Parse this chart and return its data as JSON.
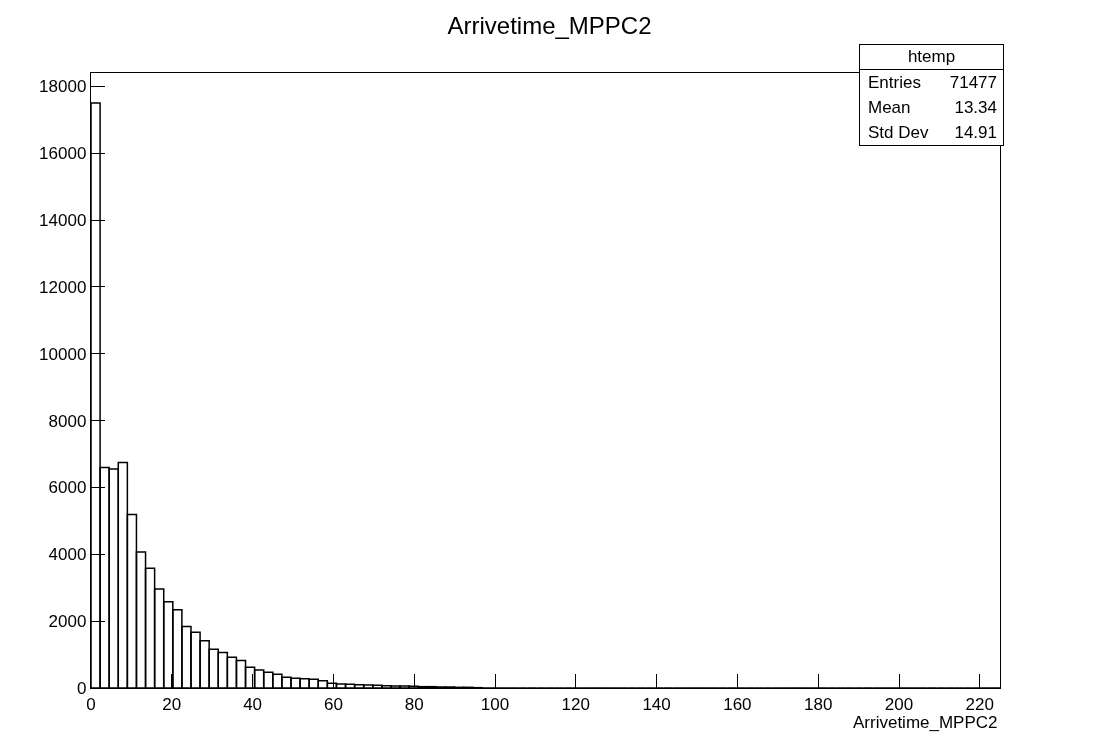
{
  "chart_data": {
    "type": "histogram",
    "title": "Arrivetime_MPPC2",
    "xlabel": "Arrivetime_MPPC2",
    "bins": [
      0,
      2.25,
      4.5,
      6.75,
      9,
      11.25,
      13.5,
      15.75,
      18,
      20.25,
      22.5,
      24.75,
      27,
      29.25,
      31.5,
      33.75,
      36,
      38.25,
      40.5,
      42.75,
      45,
      47.25,
      49.5,
      51.75,
      54,
      56.25,
      58.5,
      60.75,
      63,
      65.25,
      67.5,
      69.75,
      72,
      74.25,
      76.5,
      78.75,
      81,
      83.25,
      85.5,
      87.75,
      90,
      92.25,
      94.5,
      96.75,
      99,
      101.25,
      103.5,
      105.75,
      108,
      110.25,
      112.5,
      114.75,
      117,
      119.25,
      121.5,
      123.75,
      126,
      128.25,
      130.5,
      132.75,
      135,
      137.25,
      139.5,
      141.75,
      144,
      146.25,
      148.5,
      150.75,
      153,
      155.25,
      157.5,
      159.75,
      162,
      164.25,
      166.5,
      168.75,
      171,
      173.25,
      175.5,
      177.75,
      180,
      182.25,
      184.5,
      186.75,
      189,
      191.25,
      193.5,
      195.75,
      198,
      200.25,
      202.5,
      204.75,
      207,
      209.25,
      211.5,
      213.75,
      216,
      218.25,
      220.5,
      222.75,
      225
    ],
    "values": [
      17500,
      6600,
      6550,
      6750,
      5190,
      4070,
      3580,
      2960,
      2580,
      2340,
      1840,
      1670,
      1410,
      1160,
      1060,
      920,
      820,
      620,
      540,
      470,
      410,
      320,
      290,
      280,
      260,
      220,
      140,
      120,
      110,
      100,
      90,
      80,
      70,
      60,
      60,
      50,
      40,
      40,
      30,
      30,
      20,
      20,
      10,
      0,
      0,
      0,
      0,
      0,
      0,
      0,
      0,
      0,
      0,
      0,
      0,
      0,
      0,
      0,
      0,
      0,
      0,
      0,
      0,
      0,
      0,
      0,
      0,
      0,
      0,
      0,
      0,
      0,
      0,
      0,
      0,
      0,
      0,
      0,
      0,
      0,
      0,
      0,
      0,
      0,
      0,
      0,
      0,
      0,
      0,
      0,
      0,
      0,
      0,
      0,
      0,
      0,
      0,
      0,
      0,
      0
    ],
    "color": "#000000",
    "xlim": [
      0,
      225
    ],
    "xticks": [
      0,
      20,
      40,
      60,
      80,
      100,
      120,
      140,
      160,
      180,
      200,
      220
    ],
    "ylim": [
      0,
      18400
    ],
    "yticks": [
      0,
      2000,
      4000,
      6000,
      8000,
      10000,
      12000,
      14000,
      16000,
      18000
    ],
    "annotations": [
      "htemp",
      "Entries",
      "71477",
      "Mean",
      "13.34",
      "Std Dev",
      "14.91"
    ]
  }
}
